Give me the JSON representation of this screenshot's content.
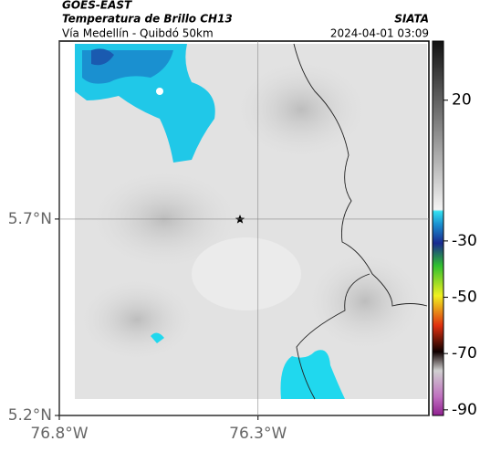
{
  "header": {
    "title": "GOES-EAST",
    "subtitle": "Temperatura de Brillo CH13",
    "route": "Vía Medellín - Quibdó 50km",
    "source": "SIATA",
    "timestamp": "2024-04-01 03:09"
  },
  "map": {
    "lonlim": [
      -76.8,
      -75.87
    ],
    "latlim": [
      5.2,
      6.153
    ],
    "xticks": [
      {
        "value": -76.8,
        "label": "76.8°W"
      },
      {
        "value": -76.3,
        "label": "76.3°W"
      }
    ],
    "yticks": [
      {
        "value": 5.7,
        "label": "5.7°N"
      },
      {
        "value": 5.2,
        "label": "5.2°N"
      }
    ],
    "grid": true
  },
  "colorbar": {
    "lim": [
      41,
      -92
    ],
    "ticks": [
      20,
      -30,
      -50,
      -70,
      -90
    ]
  }
}
